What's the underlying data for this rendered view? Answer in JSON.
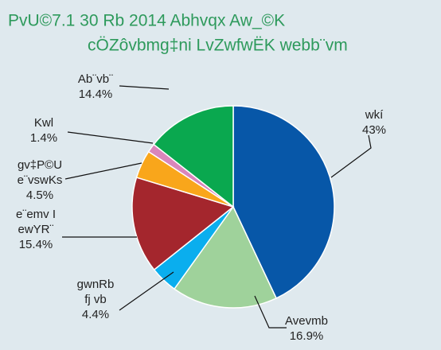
{
  "chart_data": {
    "type": "pie",
    "title": [
      "PvU©7.1   30 Rb  2014 Abhvqx Aw_©K",
      "cÖZôvbmg‡ni LvZwfwËK webb¨vm"
    ],
    "categories": [
      [
        "wkí"
      ],
      [
        "Avevmb"
      ],
      [
        "gwnRb",
        "fj vb"
      ],
      [
        "e¨emv I",
        "ewYR¨"
      ],
      [
        "gv‡P©U",
        "e¨vswKs"
      ],
      [
        "Kwl"
      ],
      [
        "Ab¨vb¨"
      ]
    ],
    "values": [
      43,
      16.9,
      4.4,
      15.4,
      4.5,
      1.4,
      14.4
    ],
    "value_labels": [
      "43%",
      "16.9%",
      "4.4%",
      "15.4%",
      "4.5%",
      "1.4%",
      "14.4%"
    ],
    "colors": [
      "#0757a8",
      "#9fd29b",
      "#0aaeee",
      "#a4262d",
      "#f9a61b",
      "#d986bb",
      "#0aa84f"
    ]
  }
}
